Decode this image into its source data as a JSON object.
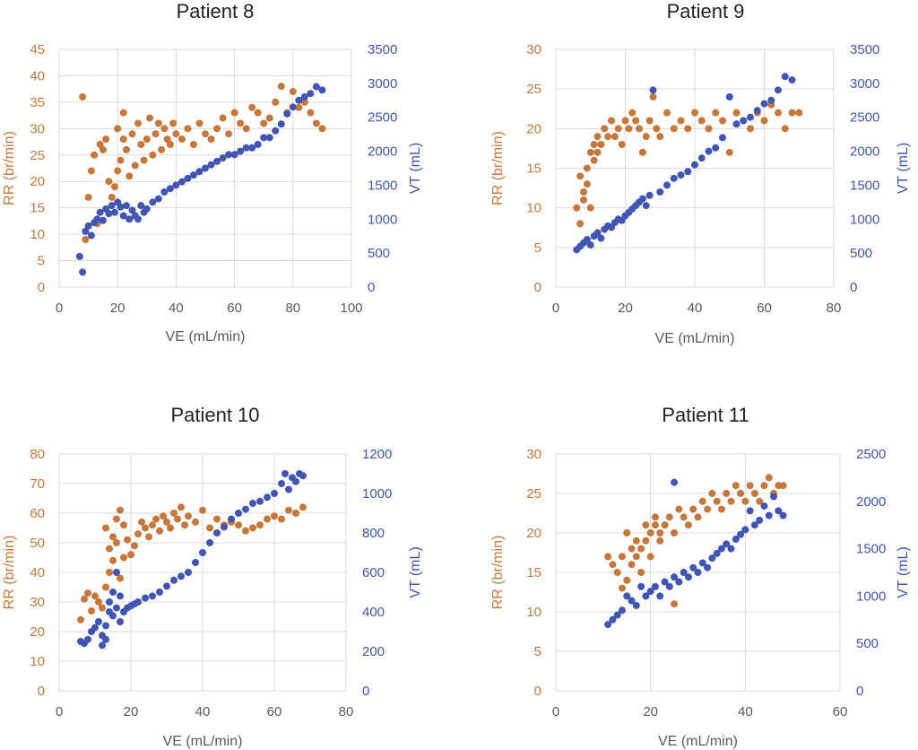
{
  "colors": {
    "rr": "#C8773A",
    "vt": "#4055B4",
    "text": "#595959",
    "grid": "#d9d9d9"
  },
  "chart_data": [
    {
      "type": "scatter",
      "title": "Patient 8",
      "xlabel": "VE (mL/min)",
      "ylabel": "RR (br/min)",
      "y2label": "VT (mL)",
      "xlim": [
        0,
        100
      ],
      "xticks": [
        0,
        20,
        40,
        60,
        80,
        100
      ],
      "ylim": [
        0,
        45
      ],
      "yticks": [
        0,
        5,
        10,
        15,
        20,
        25,
        30,
        35,
        40,
        45
      ],
      "y2lim": [
        0,
        3500
      ],
      "y2ticks": [
        0,
        500,
        1000,
        1500,
        2000,
        2500,
        3000,
        3500
      ],
      "series": [
        {
          "name": "RR",
          "axis": "y",
          "color": "#C8773A",
          "x": [
            8,
            9,
            10,
            11,
            12,
            13,
            14,
            15,
            16,
            17,
            18,
            19,
            20,
            20,
            21,
            22,
            22,
            23,
            24,
            25,
            26,
            27,
            28,
            29,
            30,
            31,
            32,
            33,
            34,
            35,
            36,
            37,
            38,
            39,
            40,
            42,
            44,
            46,
            48,
            50,
            52,
            54,
            56,
            58,
            60,
            62,
            64,
            66,
            68,
            70,
            72,
            74,
            76,
            78,
            80,
            82,
            84,
            86,
            88,
            90
          ],
          "y": [
            36,
            9,
            17,
            22,
            25,
            12,
            27,
            26,
            28,
            20,
            17,
            19,
            22,
            30,
            24,
            28,
            33,
            26,
            21,
            29,
            23,
            31,
            27,
            24,
            28,
            32,
            25,
            29,
            31,
            26,
            30,
            28,
            27,
            31,
            29,
            28,
            30,
            27,
            31,
            29,
            28,
            30,
            32,
            29,
            33,
            31,
            30,
            34,
            33,
            31,
            32,
            35,
            38,
            33,
            37,
            34,
            35,
            33,
            31,
            30
          ]
        },
        {
          "name": "VT",
          "axis": "y2",
          "color": "#4055B4",
          "x": [
            7,
            8,
            9,
            10,
            11,
            12,
            13,
            14,
            15,
            16,
            17,
            18,
            19,
            20,
            21,
            22,
            23,
            24,
            25,
            26,
            27,
            28,
            29,
            30,
            32,
            34,
            36,
            38,
            40,
            42,
            44,
            46,
            48,
            50,
            52,
            54,
            56,
            58,
            60,
            62,
            64,
            66,
            68,
            70,
            72,
            74,
            76,
            78,
            80,
            82,
            84,
            86,
            88,
            90
          ],
          "y": [
            450,
            220,
            820,
            900,
            760,
            950,
            1000,
            1100,
            980,
            1150,
            1080,
            1200,
            1100,
            1250,
            1180,
            1050,
            1200,
            1000,
            1130,
            1050,
            1000,
            1200,
            1100,
            1150,
            1250,
            1300,
            1400,
            1450,
            1500,
            1550,
            1600,
            1650,
            1700,
            1750,
            1800,
            1850,
            1900,
            1950,
            1950,
            2000,
            2050,
            2050,
            2100,
            2200,
            2200,
            2300,
            2400,
            2550,
            2650,
            2750,
            2800,
            2850,
            2950,
            2900
          ]
        }
      ]
    },
    {
      "type": "scatter",
      "title": "Patient 9",
      "xlabel": "VE (mL/min)",
      "ylabel": "RR (br/min)",
      "y2label": "VT (mL)",
      "xlim": [
        0,
        80
      ],
      "xticks": [
        0,
        20,
        40,
        60,
        80
      ],
      "ylim": [
        0,
        30
      ],
      "yticks": [
        0,
        5,
        10,
        15,
        20,
        25,
        30
      ],
      "y2lim": [
        0,
        3500
      ],
      "y2ticks": [
        0,
        500,
        1000,
        1500,
        2000,
        2500,
        3000,
        3500
      ],
      "series": [
        {
          "name": "RR",
          "axis": "y",
          "color": "#C8773A",
          "x": [
            6,
            7,
            7,
            8,
            8,
            9,
            9,
            10,
            10,
            11,
            11,
            12,
            12,
            13,
            14,
            15,
            16,
            17,
            18,
            19,
            20,
            21,
            22,
            23,
            24,
            25,
            26,
            27,
            28,
            29,
            30,
            32,
            34,
            36,
            38,
            40,
            42,
            44,
            46,
            48,
            50,
            52,
            54,
            56,
            58,
            60,
            62,
            64,
            66,
            68,
            70
          ],
          "y": [
            10,
            8,
            14,
            12,
            11,
            15,
            13,
            17,
            10,
            18,
            16,
            19,
            17,
            18,
            20,
            19,
            21,
            19,
            20,
            18,
            21,
            20,
            22,
            21,
            20,
            17,
            19,
            21,
            24,
            20,
            19,
            22,
            20,
            21,
            20,
            22,
            21,
            20,
            22,
            21,
            17,
            22,
            21,
            20,
            22,
            21,
            23,
            22,
            20,
            22,
            22
          ]
        },
        {
          "name": "VT",
          "axis": "y2",
          "color": "#4055B4",
          "x": [
            6,
            7,
            8,
            9,
            10,
            11,
            12,
            13,
            14,
            15,
            16,
            17,
            18,
            19,
            20,
            21,
            22,
            23,
            24,
            25,
            26,
            27,
            28,
            30,
            32,
            34,
            36,
            38,
            40,
            42,
            44,
            46,
            48,
            50,
            52,
            54,
            56,
            58,
            60,
            62,
            64,
            66,
            68
          ],
          "y": [
            550,
            600,
            650,
            700,
            620,
            750,
            800,
            720,
            850,
            900,
            880,
            950,
            1000,
            980,
            1050,
            1100,
            1150,
            1200,
            1250,
            1300,
            1200,
            1350,
            2900,
            1400,
            1500,
            1600,
            1650,
            1700,
            1800,
            1900,
            2000,
            2050,
            2200,
            2800,
            2400,
            2450,
            2500,
            2600,
            2700,
            2750,
            2900,
            3100,
            3050
          ]
        }
      ]
    },
    {
      "type": "scatter",
      "title": "Patient 10",
      "xlabel": "VE (mL/min)",
      "ylabel": "RR (br/min)",
      "y2label": "VT (mL)",
      "xlim": [
        0,
        80
      ],
      "xticks": [
        0,
        20,
        40,
        60,
        80
      ],
      "ylim": [
        0,
        80
      ],
      "yticks": [
        0,
        10,
        20,
        30,
        40,
        50,
        60,
        70,
        80
      ],
      "y2lim": [
        0,
        1200
      ],
      "y2ticks": [
        0,
        200,
        400,
        600,
        800,
        1000,
        1200
      ],
      "series": [
        {
          "name": "RR",
          "axis": "y",
          "color": "#C8773A",
          "x": [
            6,
            7,
            8,
            9,
            10,
            11,
            12,
            13,
            13,
            14,
            14,
            15,
            15,
            16,
            16,
            17,
            17,
            18,
            18,
            19,
            20,
            21,
            22,
            23,
            24,
            25,
            26,
            27,
            28,
            29,
            30,
            31,
            32,
            33,
            34,
            35,
            36,
            38,
            40,
            42,
            44,
            46,
            48,
            50,
            52,
            54,
            56,
            58,
            60,
            62,
            64,
            66,
            68
          ],
          "y": [
            24,
            31,
            33,
            27,
            32,
            30,
            28,
            55,
            35,
            48,
            40,
            52,
            44,
            58,
            50,
            61,
            38,
            56,
            45,
            51,
            46,
            49,
            53,
            57,
            55,
            52,
            56,
            58,
            54,
            59,
            57,
            55,
            60,
            58,
            62,
            56,
            59,
            57,
            61,
            55,
            58,
            56,
            57,
            56,
            54,
            55,
            56,
            58,
            59,
            58,
            61,
            60,
            62
          ]
        },
        {
          "name": "VT",
          "axis": "y2",
          "color": "#4055B4",
          "x": [
            6,
            7,
            8,
            9,
            10,
            11,
            12,
            12,
            13,
            13,
            14,
            14,
            15,
            15,
            16,
            16,
            17,
            17,
            18,
            19,
            20,
            21,
            22,
            24,
            26,
            28,
            30,
            32,
            34,
            36,
            38,
            40,
            42,
            44,
            46,
            48,
            50,
            52,
            54,
            56,
            58,
            60,
            62,
            63,
            64,
            65,
            66,
            67,
            68
          ],
          "y": [
            250,
            240,
            260,
            300,
            320,
            350,
            280,
            230,
            330,
            260,
            400,
            450,
            380,
            500,
            420,
            600,
            350,
            480,
            400,
            420,
            430,
            440,
            450,
            470,
            480,
            500,
            530,
            560,
            580,
            600,
            650,
            700,
            750,
            800,
            830,
            870,
            900,
            920,
            950,
            960,
            980,
            1000,
            1050,
            1100,
            1020,
            1080,
            1060,
            1100,
            1090
          ]
        }
      ]
    },
    {
      "type": "scatter",
      "title": "Patient 11",
      "xlabel": "VE (mL/min)",
      "ylabel": "RR (br/min)",
      "y2label": "VT (mL)",
      "xlim": [
        0,
        60
      ],
      "xticks": [
        0,
        20,
        40,
        60
      ],
      "ylim": [
        0,
        30
      ],
      "yticks": [
        0,
        5,
        10,
        15,
        20,
        25,
        30
      ],
      "y2lim": [
        0,
        2500
      ],
      "y2ticks": [
        0,
        500,
        1000,
        1500,
        2000,
        2500
      ],
      "series": [
        {
          "name": "RR",
          "axis": "y",
          "color": "#C8773A",
          "x": [
            11,
            12,
            13,
            14,
            14,
            15,
            15,
            16,
            16,
            17,
            17,
            18,
            18,
            19,
            19,
            20,
            20,
            21,
            21,
            22,
            22,
            23,
            24,
            25,
            25,
            26,
            27,
            28,
            29,
            30,
            31,
            32,
            33,
            34,
            35,
            36,
            37,
            38,
            39,
            40,
            41,
            42,
            43,
            44,
            45,
            46,
            47,
            48
          ],
          "y": [
            17,
            16,
            15,
            13,
            17,
            14,
            20,
            16,
            18,
            17,
            19,
            15,
            18,
            21,
            19,
            20,
            17,
            21,
            22,
            19,
            20,
            21,
            22,
            20,
            11,
            23,
            22,
            21,
            23,
            22,
            24,
            23,
            25,
            24,
            23,
            25,
            24,
            26,
            25,
            24,
            26,
            25,
            24,
            26,
            27,
            25,
            26,
            26
          ]
        },
        {
          "name": "VT",
          "axis": "y2",
          "color": "#4055B4",
          "x": [
            11,
            12,
            13,
            14,
            15,
            16,
            17,
            18,
            19,
            20,
            21,
            22,
            23,
            24,
            25,
            25,
            26,
            27,
            28,
            29,
            30,
            31,
            32,
            33,
            34,
            35,
            36,
            37,
            38,
            39,
            40,
            41,
            42,
            43,
            44,
            45,
            46,
            47,
            48
          ],
          "y": [
            700,
            750,
            800,
            850,
            1000,
            950,
            900,
            1100,
            1000,
            1050,
            1100,
            1000,
            1150,
            1100,
            1200,
            2200,
            1150,
            1250,
            1200,
            1300,
            1250,
            1350,
            1300,
            1400,
            1450,
            1500,
            1550,
            1500,
            1600,
            1650,
            1700,
            1900,
            1750,
            1800,
            1950,
            1850,
            2050,
            1900,
            1850
          ]
        }
      ]
    }
  ]
}
